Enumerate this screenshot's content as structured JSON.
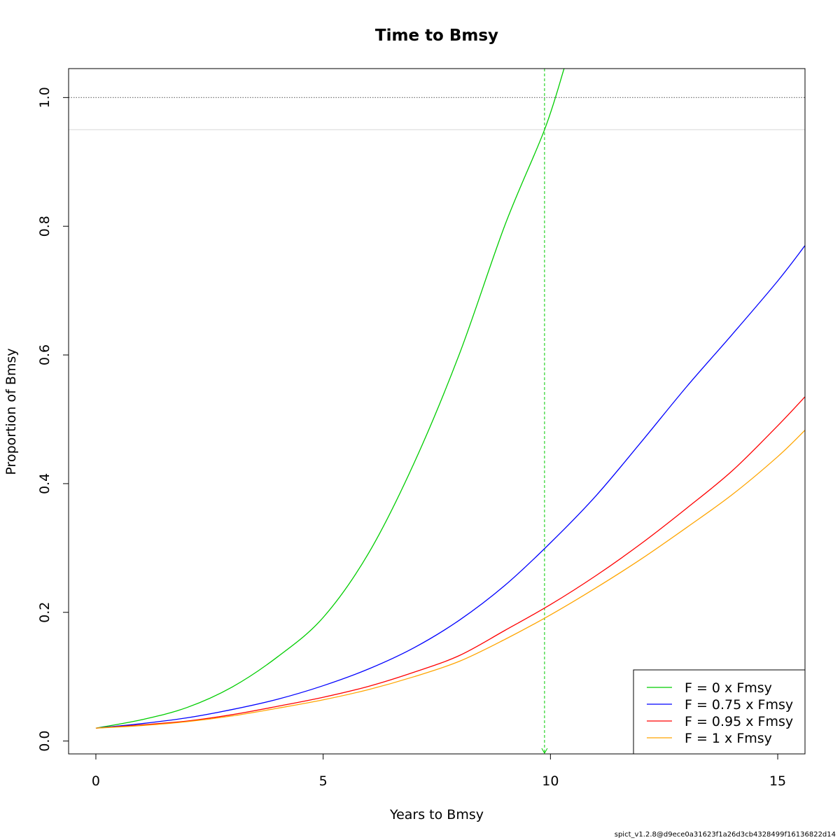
{
  "chart_data": {
    "type": "line",
    "title": "Time to Bmsy",
    "xlabel": "Years to Bmsy",
    "ylabel": "Proportion of Bmsy",
    "xlim": [
      -0.6,
      15.6
    ],
    "ylim": [
      -0.02,
      1.045
    ],
    "xticks": [
      0,
      5,
      10,
      15
    ],
    "yticks": [
      0.0,
      0.2,
      0.4,
      0.6,
      0.8,
      1.0
    ],
    "xtick_labels": [
      "0",
      "5",
      "10",
      "15"
    ],
    "ytick_labels": [
      "0.0",
      "0.2",
      "0.4",
      "0.6",
      "0.8",
      "1.0"
    ],
    "grid": false,
    "legend_position": "bottom-right",
    "hlines": [
      {
        "y": 1.0,
        "style": "dotted",
        "color": "#777777"
      },
      {
        "y": 0.95,
        "style": "solid",
        "color": "#dddddd"
      }
    ],
    "vlines": [
      {
        "x": 9.87,
        "style": "dashed",
        "color": "#00cd00"
      }
    ],
    "series": [
      {
        "name": "F = 0 x Fmsy",
        "color": "#00cd00",
        "x": [
          0,
          1,
          2,
          3,
          4,
          5,
          6,
          7,
          8,
          9,
          9.87,
          10.3
        ],
        "y": [
          0.02,
          0.033,
          0.052,
          0.084,
          0.131,
          0.192,
          0.292,
          0.432,
          0.602,
          0.802,
          0.95,
          1.045
        ]
      },
      {
        "name": "F = 0.75 x Fmsy",
        "color": "#0000ff",
        "x": [
          0,
          1,
          2,
          3,
          4,
          5,
          6,
          7,
          8,
          9,
          10,
          11,
          12,
          13,
          14,
          15,
          15.6
        ],
        "y": [
          0.02,
          0.027,
          0.036,
          0.049,
          0.065,
          0.086,
          0.112,
          0.145,
          0.188,
          0.242,
          0.308,
          0.381,
          0.465,
          0.551,
          0.632,
          0.715,
          0.77
        ]
      },
      {
        "name": "F = 0.95 x Fmsy",
        "color": "#ff0000",
        "x": [
          0,
          1,
          2,
          3,
          4,
          5,
          6,
          7,
          8,
          9,
          10,
          11,
          12,
          13,
          14,
          15,
          15.6
        ],
        "y": [
          0.02,
          0.025,
          0.031,
          0.041,
          0.054,
          0.068,
          0.085,
          0.107,
          0.133,
          0.172,
          0.212,
          0.257,
          0.307,
          0.362,
          0.42,
          0.49,
          0.535
        ]
      },
      {
        "name": "F = 1 x Fmsy",
        "color": "#ffa500",
        "x": [
          0,
          1,
          2,
          3,
          4,
          5,
          6,
          7,
          8,
          9,
          10,
          11,
          12,
          13,
          14,
          15,
          15.6
        ],
        "y": [
          0.02,
          0.024,
          0.03,
          0.039,
          0.051,
          0.064,
          0.08,
          0.1,
          0.124,
          0.158,
          0.196,
          0.238,
          0.283,
          0.332,
          0.383,
          0.442,
          0.483
        ]
      }
    ]
  },
  "footer_text": "spict_v1.2.8@d9ece0a31623f1a26d3cb4328499f16136822d14"
}
